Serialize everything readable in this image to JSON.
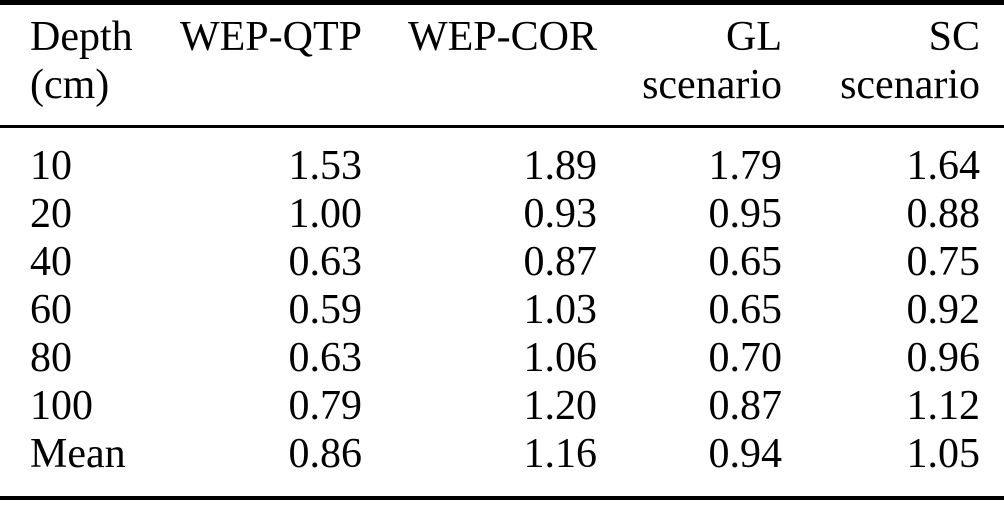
{
  "page": {
    "background_color": "#ffffff",
    "text_color": "#000000",
    "rule_color": "#000000"
  },
  "table": {
    "header": {
      "columns": [
        {
          "line1": "Depth",
          "line2": "(cm)"
        },
        {
          "line1": "WEP-QTP",
          "line2": ""
        },
        {
          "line1": "WEP-COR",
          "line2": ""
        },
        {
          "line1": "GL",
          "line2": "scenario"
        },
        {
          "line1": "SC",
          "line2": "scenario"
        }
      ]
    },
    "rows": [
      [
        "10",
        "1.53",
        "1.89",
        "1.79",
        "1.64"
      ],
      [
        "20",
        "1.00",
        "0.93",
        "0.95",
        "0.88"
      ],
      [
        "40",
        "0.63",
        "0.87",
        "0.65",
        "0.75"
      ],
      [
        "60",
        "0.59",
        "1.03",
        "0.65",
        "0.92"
      ],
      [
        "80",
        "0.63",
        "1.06",
        "0.70",
        "0.96"
      ],
      [
        "100",
        "0.79",
        "1.20",
        "0.87",
        "1.12"
      ],
      [
        "Mean",
        "0.86",
        "1.16",
        "0.94",
        "1.05"
      ]
    ]
  }
}
